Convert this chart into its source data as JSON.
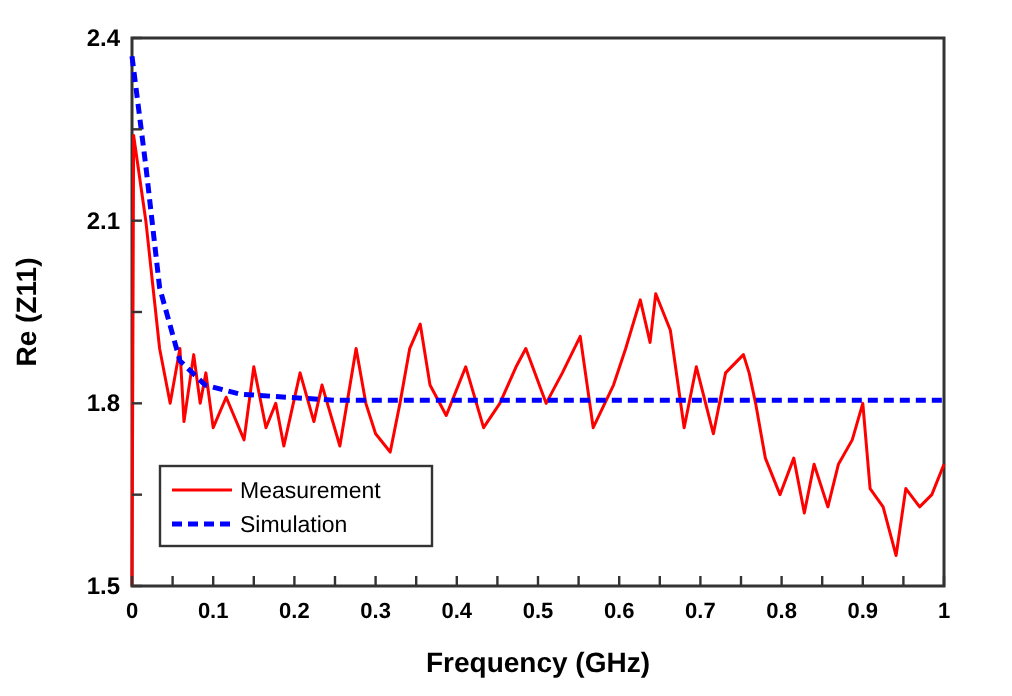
{
  "chart_data": {
    "type": "line",
    "xlabel": "Frequency (GHz)",
    "ylabel": "Re (Z11)",
    "xlim": [
      0,
      1
    ],
    "ylim": [
      1.5,
      2.4
    ],
    "xticks": [
      0,
      {
        "value": 0.05,
        "label": null
      },
      0.1,
      {
        "value": 0.15,
        "label": null
      },
      0.2,
      {
        "value": 0.25,
        "label": null
      },
      0.3,
      {
        "value": 0.35,
        "label": null
      },
      0.4,
      {
        "value": 0.45,
        "label": null
      },
      0.5,
      {
        "value": 0.55,
        "label": null
      },
      0.6,
      {
        "value": 0.65,
        "label": null
      },
      0.7,
      {
        "value": 0.75,
        "label": null
      },
      0.8,
      {
        "value": 0.85,
        "label": null
      },
      0.9,
      {
        "value": 0.95,
        "label": null
      },
      1
    ],
    "yticks": [
      1.5,
      {
        "value": 1.65,
        "label": null
      },
      1.8,
      {
        "value": 1.95,
        "label": null
      },
      2.1,
      {
        "value": 2.25,
        "label": null
      },
      2.4
    ],
    "grid": false,
    "legend": "bottom left",
    "marker": "none",
    "series": [
      {
        "name": "Measurement",
        "color": "#ff0000",
        "line_style": "solid",
        "x": [
          0,
          0.002,
          0.017,
          0.034,
          0.047,
          0.059,
          0.064,
          0.076,
          0.084,
          0.091,
          0.1,
          0.116,
          0.138,
          0.15,
          0.165,
          0.177,
          0.187,
          0.207,
          0.224,
          0.234,
          0.256,
          0.276,
          0.288,
          0.3,
          0.318,
          0.33,
          0.342,
          0.355,
          0.367,
          0.387,
          0.411,
          0.433,
          0.453,
          0.473,
          0.485,
          0.51,
          0.53,
          0.552,
          0.568,
          0.593,
          0.608,
          0.626,
          0.638,
          0.645,
          0.663,
          0.68,
          0.695,
          0.716,
          0.731,
          0.753,
          0.76,
          0.768,
          0.78,
          0.798,
          0.815,
          0.828,
          0.84,
          0.857,
          0.87,
          0.887,
          0.9,
          0.909,
          0.925,
          0.941,
          0.953,
          0.97,
          0.985,
          1
        ],
        "values": [
          1.5,
          2.24,
          2.1,
          1.89,
          1.8,
          1.89,
          1.77,
          1.88,
          1.8,
          1.85,
          1.76,
          1.81,
          1.74,
          1.86,
          1.76,
          1.8,
          1.73,
          1.85,
          1.77,
          1.83,
          1.73,
          1.89,
          1.8,
          1.75,
          1.72,
          1.8,
          1.89,
          1.93,
          1.83,
          1.78,
          1.86,
          1.76,
          1.8,
          1.86,
          1.89,
          1.8,
          1.85,
          1.91,
          1.76,
          1.83,
          1.89,
          1.97,
          1.9,
          1.98,
          1.92,
          1.76,
          1.86,
          1.75,
          1.85,
          1.88,
          1.85,
          1.8,
          1.71,
          1.65,
          1.71,
          1.62,
          1.7,
          1.63,
          1.7,
          1.74,
          1.8,
          1.66,
          1.63,
          1.55,
          1.66,
          1.63,
          1.65,
          1.7
        ]
      },
      {
        "name": "Simulation",
        "color": "#0000ff",
        "line_style": "dashed",
        "x": [
          0,
          0.017,
          0.034,
          0.059,
          0.09,
          0.133,
          0.25,
          1
        ],
        "values": [
          2.37,
          2.19,
          1.99,
          1.87,
          1.83,
          1.815,
          1.805,
          1.805
        ]
      }
    ]
  }
}
